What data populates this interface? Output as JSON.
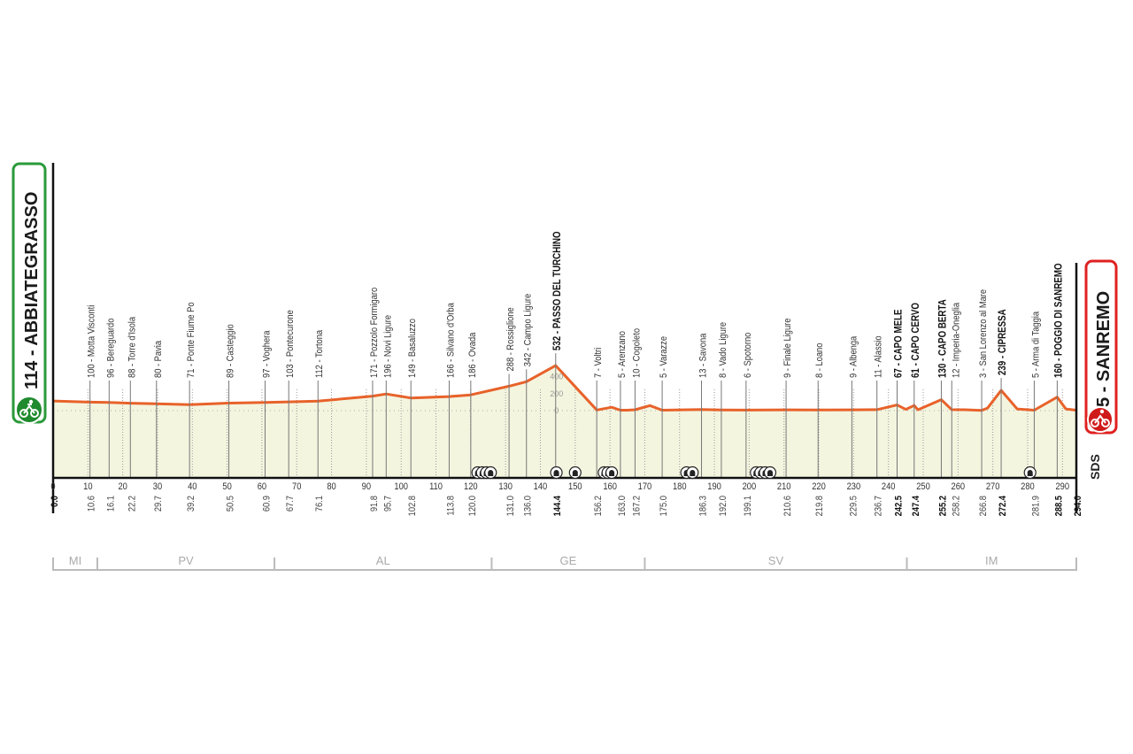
{
  "start": {
    "label": "114 - ABBIATEGRASSO",
    "color": "#2a9a3a",
    "icon": "cyclist-icon"
  },
  "finish": {
    "label": "5 - SANREMO",
    "color": "#e02020",
    "icon": "cyclist-icon"
  },
  "logo": "SDS",
  "chart_data": {
    "type": "area",
    "xlim": [
      0,
      294
    ],
    "x_ticks": [
      0,
      10,
      20,
      30,
      40,
      50,
      60,
      70,
      80,
      90,
      100,
      110,
      120,
      130,
      140,
      150,
      160,
      170,
      180,
      190,
      200,
      210,
      220,
      230,
      240,
      250,
      260,
      270,
      280,
      290
    ],
    "y_ticks": [
      0,
      200,
      400
    ],
    "line_color": "#e8622a",
    "fill_color": "#f4f5df",
    "waypoints": [
      {
        "km": "0.0",
        "elev": 114,
        "name": "ABBIATEGRASSO",
        "bold": true
      },
      {
        "km": "10.6",
        "elev": 100,
        "name": "Motta Visconti"
      },
      {
        "km": "16.1",
        "elev": 96,
        "name": "Bereguardo"
      },
      {
        "km": "22.2",
        "elev": 88,
        "name": "Torre d'Isola"
      },
      {
        "km": "29.7",
        "elev": 80,
        "name": "Pavia"
      },
      {
        "km": "39.2",
        "elev": 71,
        "name": "Ponte Fiume Po"
      },
      {
        "km": "50.5",
        "elev": 89,
        "name": "Casteggio"
      },
      {
        "km": "60.9",
        "elev": 97,
        "name": "Voghera"
      },
      {
        "km": "67.7",
        "elev": 103,
        "name": "Pontecurone"
      },
      {
        "km": "76.1",
        "elev": 112,
        "name": "Tortona"
      },
      {
        "km": "91.8",
        "elev": 171,
        "name": "Pozzolo Formigaro"
      },
      {
        "km": "95.7",
        "elev": 196,
        "name": "Novi Ligure"
      },
      {
        "km": "102.8",
        "elev": 149,
        "name": "Basaluzzo"
      },
      {
        "km": "113.8",
        "elev": 166,
        "name": "Silvano d'Orba"
      },
      {
        "km": "120.0",
        "elev": 186,
        "name": "Ovada"
      },
      {
        "km": "131.0",
        "elev": 288,
        "name": "Rossiglione"
      },
      {
        "km": "136.0",
        "elev": 342,
        "name": "Campo Ligure"
      },
      {
        "km": "144.4",
        "elev": 532,
        "name": "PASSO DEL TURCHINO",
        "bold": true
      },
      {
        "km": "156.2",
        "elev": 7,
        "name": "Voltri"
      },
      {
        "km": "163.0",
        "elev": 5,
        "name": "Arenzano"
      },
      {
        "km": "167.2",
        "elev": 10,
        "name": "Cogoleto"
      },
      {
        "km": "175.0",
        "elev": 5,
        "name": "Varazze"
      },
      {
        "km": "186.3",
        "elev": 13,
        "name": "Savona"
      },
      {
        "km": "192.0",
        "elev": 8,
        "name": "Vado Ligure"
      },
      {
        "km": "199.1",
        "elev": 6,
        "name": "Spotorno"
      },
      {
        "km": "210.6",
        "elev": 9,
        "name": "Finale Ligure"
      },
      {
        "km": "219.8",
        "elev": 8,
        "name": "Loano"
      },
      {
        "km": "229.5",
        "elev": 9,
        "name": "Albenga"
      },
      {
        "km": "236.7",
        "elev": 11,
        "name": "Alassio"
      },
      {
        "km": "242.5",
        "elev": 67,
        "name": "CAPO MELE",
        "bold": true
      },
      {
        "km": "247.4",
        "elev": 61,
        "name": "CAPO CERVO",
        "bold": true
      },
      {
        "km": "255.2",
        "elev": 130,
        "name": "CAPO BERTA",
        "bold": true
      },
      {
        "km": "258.2",
        "elev": 12,
        "name": "Imperia-Oneglia"
      },
      {
        "km": "266.8",
        "elev": 3,
        "name": "San Lorenzo al Mare"
      },
      {
        "km": "272.4",
        "elev": 239,
        "name": "CIPRESSA",
        "bold": true
      },
      {
        "km": "281.9",
        "elev": 5,
        "name": "Arma di Taggia"
      },
      {
        "km": "288.5",
        "elev": 160,
        "name": "POGGIO DI SANREMO",
        "bold": true
      },
      {
        "km": "294.0",
        "elev": 5,
        "name": "SANREMO",
        "bold": true
      }
    ],
    "extra_profile_points": [
      [
        160.5,
        40
      ],
      [
        165,
        5
      ],
      [
        171.5,
        60
      ],
      [
        248.5,
        10
      ],
      [
        245,
        15
      ],
      [
        262,
        10
      ],
      [
        268.5,
        30
      ],
      [
        277,
        20
      ],
      [
        291,
        20
      ]
    ],
    "tunnels_km": [
      122,
      123.3,
      124.5,
      125.7,
      144.6,
      150,
      158.3,
      159.4,
      160.5,
      182,
      183.7,
      202,
      203.3,
      204.6,
      206,
      280.7
    ],
    "provinces": [
      {
        "code": "MI",
        "from": 0,
        "to": 12.7
      },
      {
        "code": "PV",
        "from": 12.7,
        "to": 63.6
      },
      {
        "code": "AL",
        "from": 63.6,
        "to": 126
      },
      {
        "code": "GE",
        "from": 126,
        "to": 170
      },
      {
        "code": "SV",
        "from": 170,
        "to": 245.3
      },
      {
        "code": "IM",
        "from": 245.3,
        "to": 294
      }
    ]
  }
}
